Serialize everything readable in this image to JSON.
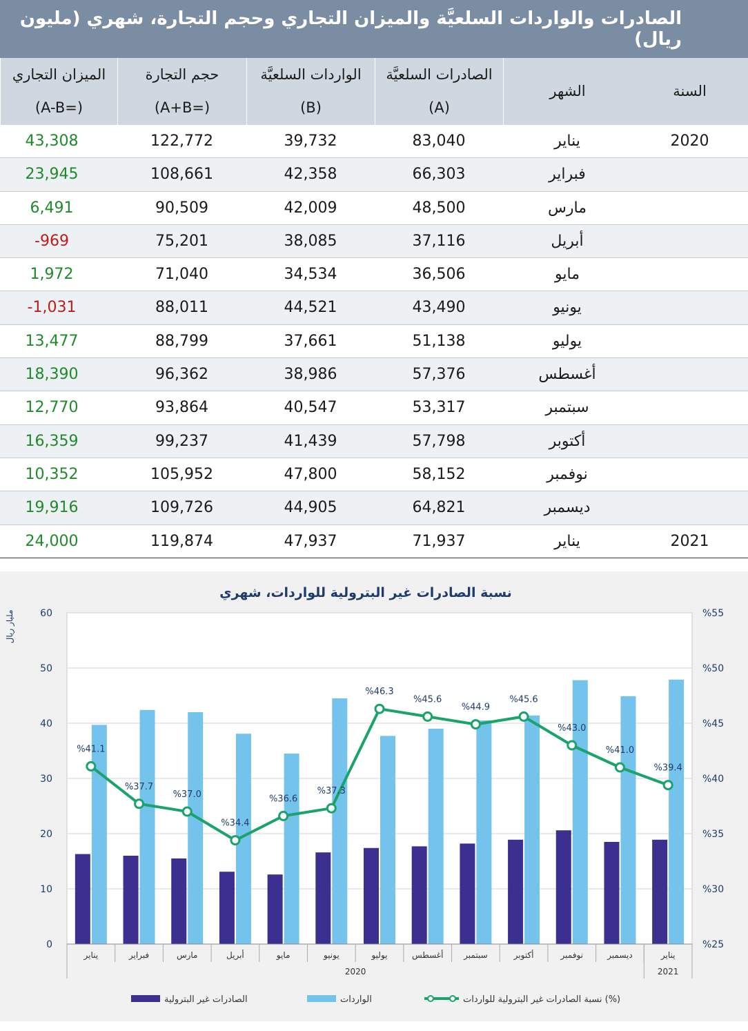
{
  "table": {
    "title": "الصادرات والواردات السلعيَّة والميزان التجاري وحجم التجارة، شهري (مليون ريال)",
    "headers": {
      "year": "السنة",
      "month": "الشهر",
      "exports": "الصادرات السلعيَّة",
      "exports_code": "(A)",
      "imports": "الواردات السلعيَّة",
      "imports_code": "(B)",
      "volume": "حجم التجارة",
      "volume_code": "(=A+B)",
      "balance": "الميزان التجاري",
      "balance_code": "(=A-B)"
    },
    "rows": [
      {
        "year": "2020",
        "month": "يناير",
        "exports": "83,040",
        "imports": "39,732",
        "volume": "122,772",
        "balance": "43,308",
        "sign": "pos"
      },
      {
        "year": "",
        "month": "فبراير",
        "exports": "66,303",
        "imports": "42,358",
        "volume": "108,661",
        "balance": "23,945",
        "sign": "pos"
      },
      {
        "year": "",
        "month": "مارس",
        "exports": "48,500",
        "imports": "42,009",
        "volume": "90,509",
        "balance": "6,491",
        "sign": "pos"
      },
      {
        "year": "",
        "month": "أبريل",
        "exports": "37,116",
        "imports": "38,085",
        "volume": "75,201",
        "balance": "-969",
        "sign": "neg"
      },
      {
        "year": "",
        "month": "مايو",
        "exports": "36,506",
        "imports": "34,534",
        "volume": "71,040",
        "balance": "1,972",
        "sign": "pos"
      },
      {
        "year": "",
        "month": "يونيو",
        "exports": "43,490",
        "imports": "44,521",
        "volume": "88,011",
        "balance": "-1,031",
        "sign": "neg"
      },
      {
        "year": "",
        "month": "يوليو",
        "exports": "51,138",
        "imports": "37,661",
        "volume": "88,799",
        "balance": "13,477",
        "sign": "pos"
      },
      {
        "year": "",
        "month": "أغسطس",
        "exports": "57,376",
        "imports": "38,986",
        "volume": "96,362",
        "balance": "18,390",
        "sign": "pos"
      },
      {
        "year": "",
        "month": "سبتمبر",
        "exports": "53,317",
        "imports": "40,547",
        "volume": "93,864",
        "balance": "12,770",
        "sign": "pos"
      },
      {
        "year": "",
        "month": "أكتوبر",
        "exports": "57,798",
        "imports": "41,439",
        "volume": "99,237",
        "balance": "16,359",
        "sign": "pos"
      },
      {
        "year": "",
        "month": "نوفمبر",
        "exports": "58,152",
        "imports": "47,800",
        "volume": "105,952",
        "balance": "10,352",
        "sign": "pos"
      },
      {
        "year": "",
        "month": "ديسمبر",
        "exports": "64,821",
        "imports": "44,905",
        "volume": "109,726",
        "balance": "19,916",
        "sign": "pos"
      },
      {
        "year": "2021",
        "month": "يناير",
        "exports": "71,937",
        "imports": "47,937",
        "volume": "119,874",
        "balance": "24,000",
        "sign": "pos"
      }
    ]
  },
  "chart_data": {
    "type": "bar",
    "title": "نسبة الصادرات غير البترولية للواردات، شهري",
    "ylabel": "مليار ريال",
    "ylim": [
      0,
      60
    ],
    "y_ticks": [
      "60",
      "50",
      "40",
      "30",
      "20",
      "10",
      "0"
    ],
    "y2lim": [
      25,
      55
    ],
    "y2_ticks": [
      "%55",
      "%50",
      "%45",
      "%40",
      "%35",
      "%30",
      "%25"
    ],
    "categories": [
      "يناير",
      "فبراير",
      "مارس",
      "أبريل",
      "مايو",
      "يونيو",
      "يوليو",
      "أغسطس",
      "سبتمبر",
      "أكتوبر",
      "نوفمبر",
      "ديسمبر",
      "يناير"
    ],
    "year_groups": [
      {
        "label": "2020",
        "count": 12
      },
      {
        "label": "2021",
        "count": 1
      }
    ],
    "series": [
      {
        "name": "الصادرات غير البترولية",
        "kind": "bar",
        "axis": "left",
        "color": "#3b2f8f",
        "values": [
          16.3,
          16.0,
          15.5,
          13.1,
          12.6,
          16.6,
          17.4,
          17.7,
          18.2,
          18.9,
          20.6,
          18.5,
          18.9
        ]
      },
      {
        "name": "الواردات",
        "kind": "bar",
        "axis": "left",
        "color": "#74c3ec",
        "values": [
          39.7,
          42.4,
          42.0,
          38.1,
          34.5,
          44.5,
          37.7,
          39.0,
          40.5,
          41.4,
          47.8,
          44.9,
          47.9
        ]
      },
      {
        "name": "نسبة الصادرات غير البترولية للواردات (%)",
        "kind": "line",
        "axis": "right",
        "color": "#1aa36a",
        "values": [
          41.1,
          37.7,
          37.0,
          34.4,
          36.6,
          37.3,
          46.3,
          45.6,
          44.9,
          45.6,
          43.0,
          41.0,
          39.4
        ],
        "labels": [
          "%41.1",
          "%37.7",
          "%37.0",
          "%34.4",
          "%36.6",
          "%37.3",
          "%46.3",
          "%45.6",
          "%44.9",
          "%45.6",
          "%43.0",
          "%41.0",
          "%39.4"
        ]
      }
    ],
    "legend_position": "bottom",
    "grid": true
  }
}
